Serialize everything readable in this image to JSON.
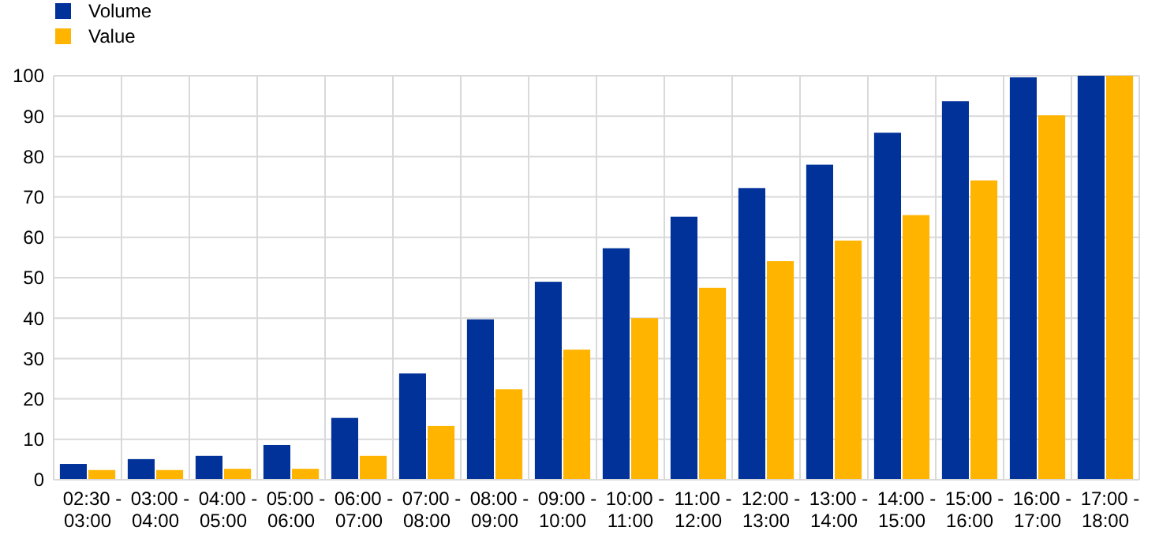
{
  "chart_data": {
    "type": "bar",
    "categories": [
      "02:30 - 03:00",
      "03:00 - 04:00",
      "04:00 - 05:00",
      "05:00 - 06:00",
      "06:00 - 07:00",
      "07:00 - 08:00",
      "08:00 - 09:00",
      "09:00 - 10:00",
      "10:00 - 11:00",
      "11:00 - 12:00",
      "12:00 - 13:00",
      "13:00 - 14:00",
      "14:00 - 15:00",
      "15:00 - 16:00",
      "16:00 - 17:00",
      "17:00 - 18:00"
    ],
    "series": [
      {
        "name": "Volume",
        "color": "#003299",
        "values": [
          3.9,
          5.1,
          5.9,
          8.6,
          15.3,
          26.3,
          39.7,
          49.0,
          57.3,
          65.1,
          72.2,
          78.0,
          85.9,
          93.7,
          99.6,
          100
        ]
      },
      {
        "name": "Value",
        "color": "#ffb400",
        "values": [
          2.4,
          2.4,
          2.7,
          2.7,
          5.9,
          13.3,
          22.4,
          32.2,
          40.0,
          47.5,
          54.1,
          59.2,
          65.5,
          74.1,
          90.2,
          100
        ]
      }
    ],
    "ylim": [
      0,
      100
    ],
    "yticks": [
      0,
      10,
      20,
      30,
      40,
      50,
      60,
      70,
      80,
      90,
      100
    ],
    "grid": true,
    "legend": "top left"
  }
}
